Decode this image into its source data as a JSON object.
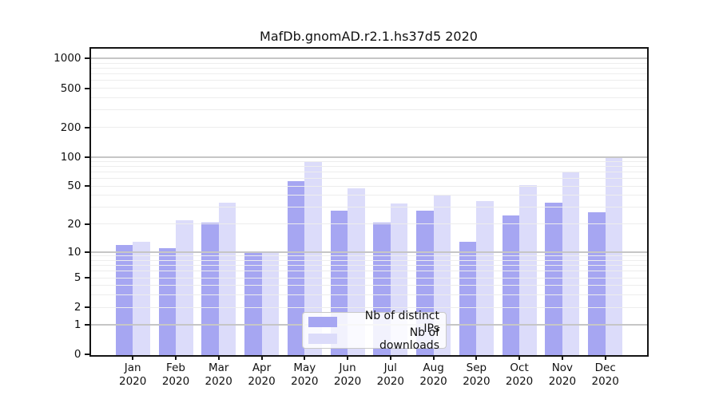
{
  "figure": {
    "title": "MafDb.gnomAD.r2.1.hs37d5 2020",
    "background": "#ffffff"
  },
  "chart_data": {
    "type": "bar",
    "title": "MafDb.gnomAD.r2.1.hs37d5 2020",
    "categories": [
      "Jan 2020",
      "Feb 2020",
      "Mar 2020",
      "Apr 2020",
      "May 2020",
      "Jun 2020",
      "Jul 2020",
      "Aug 2020",
      "Sep 2020",
      "Oct 2020",
      "Nov 2020",
      "Dec 2020"
    ],
    "x_months": [
      "Jan",
      "Feb",
      "Mar",
      "Apr",
      "May",
      "Jun",
      "Jul",
      "Aug",
      "Sep",
      "Oct",
      "Nov",
      "Dec"
    ],
    "x_year": "2020",
    "series": [
      {
        "name": "Nb of distinct IPs",
        "color": "#a6a6f2",
        "values": [
          12,
          11,
          21,
          10,
          57,
          28,
          21,
          28,
          13,
          25,
          34,
          27
        ]
      },
      {
        "name": "Nb of downloads",
        "color": "#dcdcfa",
        "values": [
          13,
          22,
          34,
          10,
          90,
          48,
          33,
          40,
          35,
          51,
          70,
          100
        ]
      }
    ],
    "yscale": "log1p",
    "y_tick_values": [
      0,
      1,
      2,
      5,
      10,
      20,
      50,
      100,
      200,
      500,
      1000
    ],
    "y_tick_labels": [
      "0",
      "1",
      "2",
      "5",
      "10",
      "20",
      "50",
      "100",
      "200",
      "500",
      "1000"
    ],
    "ylim": [
      0,
      1260
    ],
    "grid": true,
    "legend_position": "lower center",
    "xlabel": "",
    "ylabel": ""
  },
  "colors": {
    "bar_ips": "#a6a6f2",
    "bar_downloads": "#dcdcfa",
    "grid_major": "#c6c6c6",
    "grid_minor": "#ededed",
    "spine": "#141414",
    "text": "#111111",
    "legend_border": "#c9c9c9",
    "legend_bg": "rgba(255,255,255,0.85)"
  }
}
